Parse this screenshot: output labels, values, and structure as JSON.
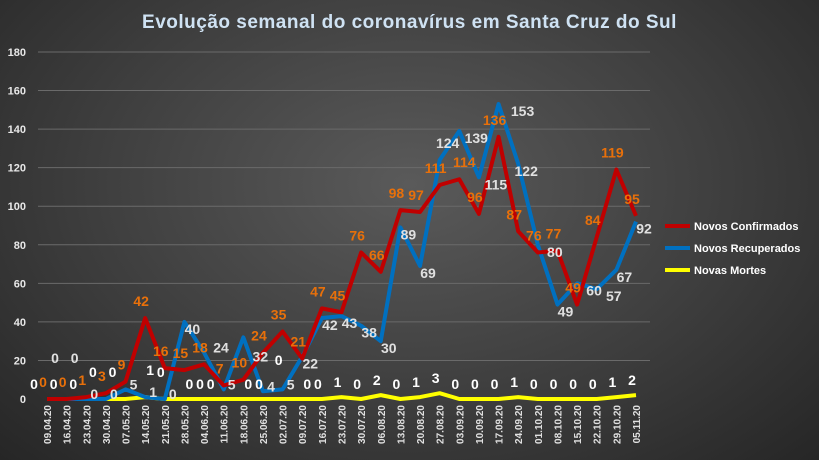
{
  "chart_data": {
    "type": "line",
    "title": "Evolução semanal do coronavírus  em Santa Cruz do Sul",
    "xlabel": "",
    "ylabel": "",
    "ylim": [
      0,
      180
    ],
    "yticks": [
      0,
      20,
      40,
      60,
      80,
      100,
      120,
      140,
      160,
      180
    ],
    "grid": true,
    "legend": "right",
    "categories": [
      "09.04.20",
      "16.04.20",
      "23.04.20",
      "30.04.20",
      "07.05.20",
      "14.05.20",
      "21.05.20",
      "28.05.20",
      "04.06.20",
      "11.06.20",
      "18.06.20",
      "25.06.20",
      "02.07.20",
      "09.07.20",
      "16.07.20",
      "23.07.20",
      "30.07.20",
      "06.08.20",
      "13.08.20",
      "20.08.20",
      "27.08.20",
      "03.09.20",
      "10.09.20",
      "17.09.20",
      "24.09.20",
      "01.10.20",
      "08.10.20",
      "15.10.20",
      "22.10.20",
      "29.10.20",
      "05.11.20"
    ],
    "series": [
      {
        "name": "Novos Confirmados",
        "color": "#c00000",
        "label_color": "#e8700a",
        "values": [
          0,
          0,
          1,
          3,
          9,
          42,
          16,
          15,
          18,
          7,
          10,
          24,
          35,
          21,
          47,
          45,
          76,
          66,
          98,
          97,
          111,
          114,
          96,
          136,
          87,
          76,
          77,
          49,
          84,
          119,
          95
        ]
      },
      {
        "name": "Novos Recuperados",
        "color": "#0070c0",
        "label_color": "#e0e0e0",
        "values": [
          0,
          0,
          0,
          0,
          5,
          1,
          0,
          40,
          24,
          5,
          32,
          4,
          5,
          22,
          42,
          43,
          38,
          30,
          89,
          69,
          124,
          139,
          115,
          153,
          122,
          80,
          49,
          60,
          57,
          67,
          92
        ]
      },
      {
        "name": "Novas Mortes",
        "color": "#ffff00",
        "label_color": "#ffffff",
        "values": [
          0,
          0,
          0,
          0,
          0,
          1,
          0,
          0,
          0,
          0,
          0,
          0,
          0,
          0,
          0,
          1,
          0,
          2,
          0,
          1,
          3,
          0,
          0,
          0,
          1,
          0,
          0,
          0,
          0,
          1,
          2
        ]
      }
    ]
  }
}
